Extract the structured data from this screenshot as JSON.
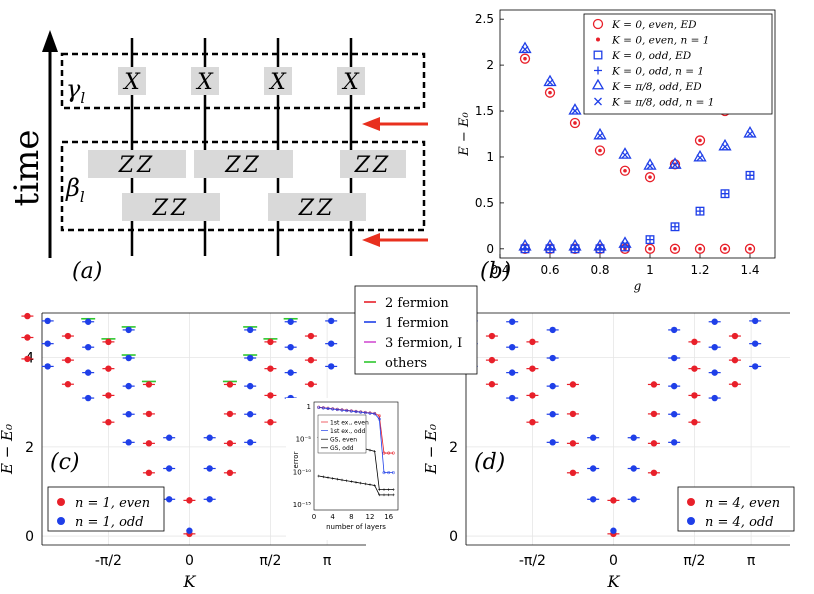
{
  "colors": {
    "even": "#e8202a",
    "odd": "#1f3fe8",
    "fermion2": "#e8202a",
    "fermion1": "#1f3fe8",
    "fermion3": "#d24fd2",
    "others": "#2ec72e",
    "arrow": "#e8301e",
    "gate": "#d9d9d9"
  },
  "panel_a": {
    "label": "(a)",
    "time_label": "time",
    "gamma_label": "γ_l",
    "beta_label": "β_l",
    "x_gates": [
      "X",
      "X",
      "X",
      "X"
    ],
    "zz_row1": [
      "ZZ",
      "ZZ",
      "ZZ"
    ],
    "zz_row2": [
      "ZZ",
      "ZZ"
    ]
  },
  "chart_data": [
    {
      "id": "b",
      "type": "scatter",
      "panel_label": "(b)",
      "xlabel": "g",
      "ylabel": "E − E₀",
      "xlim": [
        0.4,
        1.5
      ],
      "ylim": [
        -0.1,
        2.6
      ],
      "xticks": [
        0.4,
        0.6,
        0.8,
        1,
        1.2,
        1.4
      ],
      "xtick_labels": [
        "0.4",
        "0.6",
        "0.8",
        "1",
        "1.2",
        "1.4"
      ],
      "yticks": [
        0,
        0.5,
        1,
        1.5,
        2,
        2.5
      ],
      "ytick_labels": [
        "0",
        "0.5",
        "1",
        "1.5",
        "2",
        "2.5"
      ],
      "legend": [
        "K = 0, even, ED",
        "K = 0, even, n = 1",
        "K = 0, odd, ED",
        "K = 0, odd, n = 1",
        "K = π/8, odd, ED",
        "K = π/8, odd, n = 1"
      ],
      "g": [
        0.5,
        0.6,
        0.7,
        0.8,
        0.9,
        1.0,
        1.1,
        1.2,
        1.3,
        1.4
      ],
      "series": [
        {
          "name": "K0 even low",
          "values": [
            0,
            0,
            0,
            0,
            0,
            0,
            0,
            0,
            0,
            0
          ]
        },
        {
          "name": "K0 even high",
          "values": [
            2.07,
            1.7,
            1.37,
            1.07,
            0.85,
            0.78,
            0.92,
            1.18,
            1.5,
            1.84
          ]
        },
        {
          "name": "K0 odd",
          "values": [
            0,
            0,
            0,
            0,
            0.02,
            0.1,
            0.24,
            0.41,
            0.6,
            0.8
          ]
        },
        {
          "name": "Kpi8 odd low",
          "values": [
            0,
            0,
            0,
            0,
            0.03,
            null,
            null,
            null,
            null,
            null
          ]
        },
        {
          "name": "Kpi8 odd high",
          "values": [
            2.15,
            1.79,
            1.48,
            1.21,
            1.0,
            0.88,
            0.89,
            0.97,
            1.09,
            1.23
          ]
        }
      ]
    },
    {
      "id": "c",
      "type": "scatter",
      "panel_label": "(c)",
      "xlabel": "K",
      "ylabel": "E − E₀",
      "ylim": [
        -0.2,
        5
      ],
      "yticks": [
        0,
        2,
        4
      ],
      "ytick_labels": [
        "0",
        "2",
        "4"
      ],
      "xtick_labels": [
        "-π/2",
        "0",
        "π/2",
        "π"
      ],
      "legend_items": [
        "2 fermion",
        "1 fermion",
        "3 fermion, I",
        "others"
      ],
      "point_legend": [
        "n = 1,  even",
        "n = 1,  odd"
      ],
      "low_bands": [
        {
          "k": 0,
          "parity": "even",
          "e": [
            0.05,
            0.8,
            1.5
          ]
        },
        {
          "k": 0,
          "parity": "odd",
          "e": [
            0.1,
            1.6,
            2.4
          ]
        },
        {
          "k": 1,
          "parity": "odd",
          "e": [
            0.88,
            1.6,
            2.35,
            3.05,
            3.7
          ]
        },
        {
          "k": -1,
          "parity": "odd",
          "e": [
            0.88,
            1.6,
            2.35,
            3.05,
            3.7
          ]
        },
        {
          "k": 2,
          "parity": "even",
          "e": [
            1.5,
            2.3,
            3.0,
            3.7,
            4.3
          ]
        },
        {
          "k": -2,
          "parity": "even",
          "e": [
            1.5,
            2.3,
            3.0,
            3.7,
            4.3
          ]
        }
      ]
    },
    {
      "id": "c_inset",
      "type": "line",
      "xlabel": "number of layers",
      "ylabel": "error",
      "xticks": [
        0,
        4,
        8,
        12,
        16
      ],
      "ytick_labels": [
        "1",
        "10⁻⁵",
        "10⁻¹⁰",
        "10⁻¹⁵"
      ],
      "legend": [
        "1st ex., even",
        "1st ex., odd",
        "GS, even",
        "GS, odd"
      ]
    },
    {
      "id": "d",
      "type": "scatter",
      "panel_label": "(d)",
      "xlabel": "K",
      "ylabel": "E − E₀",
      "ylim": [
        -0.2,
        5
      ],
      "yticks": [
        0,
        2,
        4
      ],
      "ytick_labels": [
        "0",
        "2",
        "4"
      ],
      "xtick_labels": [
        "-π/2",
        "0",
        "π/2",
        "π"
      ],
      "point_legend": [
        "n = 4,  even",
        "n = 4,  odd"
      ]
    }
  ]
}
